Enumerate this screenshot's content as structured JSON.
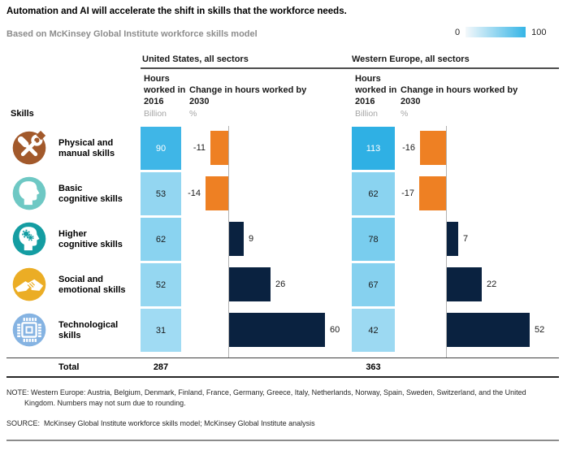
{
  "title": "Automation and AI will accelerate the shift in skills that the workforce needs.",
  "subtitle": "Based on McKinsey Global Institute workforce skills model",
  "legend": {
    "min": "0",
    "max": "100"
  },
  "sections": {
    "us": "United States, all sectors",
    "we": "Western Europe, all sectors"
  },
  "columns": {
    "skills": "Skills",
    "hours_title": "Hours worked in 2016",
    "hours_unit": "Billion",
    "change_title": "Change in hours worked by 2030",
    "change_unit": "%"
  },
  "rows": [
    {
      "icon": "tools-icon",
      "icon_color": "#A2592B",
      "label": "Physical and\nmanual skills",
      "us_hours": "90",
      "us_change": "-11",
      "we_hours": "113",
      "we_change": "-16",
      "us_hours_color": "#3FB6E7",
      "we_hours_color": "#2FB0E4",
      "us_text": "#ffffff",
      "we_text": "#ffffff"
    },
    {
      "icon": "head-silhouette-icon",
      "icon_color": "#6EC8C4",
      "label": "Basic\ncognitive skills",
      "us_hours": "53",
      "us_change": "-14",
      "we_hours": "62",
      "we_change": "-17",
      "us_hours_color": "#93D6F1",
      "we_hours_color": "#8AD3F0",
      "us_text": "#1a1a1a",
      "we_text": "#1a1a1a"
    },
    {
      "icon": "head-gears-icon",
      "icon_color": "#149DA2",
      "label": "Higher\ncognitive skills",
      "us_hours": "62",
      "us_change": "9",
      "we_hours": "78",
      "we_change": "7",
      "us_hours_color": "#8AD3F0",
      "we_hours_color": "#79CDEE",
      "us_text": "#1a1a1a",
      "we_text": "#1a1a1a"
    },
    {
      "icon": "handshake-icon",
      "icon_color": "#EBAD25",
      "label": "Social and\nemotional skills",
      "us_hours": "52",
      "us_change": "26",
      "we_hours": "67",
      "we_change": "22",
      "us_hours_color": "#95D7F1",
      "we_hours_color": "#86D1EF",
      "us_text": "#1a1a1a",
      "we_text": "#1a1a1a"
    },
    {
      "icon": "microchip-icon",
      "icon_color": "#85B3E2",
      "label": "Technological\nskills",
      "us_hours": "31",
      "us_change": "60",
      "we_hours": "42",
      "we_change": "52",
      "us_hours_color": "#A0DBF3",
      "we_hours_color": "#9CD9F2",
      "us_text": "#1a1a1a",
      "we_text": "#1a1a1a"
    }
  ],
  "total": {
    "label": "Total",
    "us": "287",
    "we": "363"
  },
  "note": "NOTE: Western Europe: Austria, Belgium, Denmark, Finland, France, Germany, Greece, Italy, Netherlands, Norway, Spain, Sweden, Switzerland, and the United Kingdom. Numbers may not sum due to rounding.",
  "source": "SOURCE:  McKinsey Global Institute workforce skills model; McKinsey Global Institute analysis",
  "colors": {
    "positive_bar": "#0A2240",
    "negative_bar": "#EE8023",
    "axis": "#B3B3B3",
    "scale_low": "#F4F8FB",
    "scale_high": "#35B5E6"
  },
  "chart_data": {
    "type": "bar",
    "title": "Automation and AI will accelerate the shift in skills that the workforce needs.",
    "subtitle": "Based on McKinsey Global Institute workforce skills model",
    "categories": [
      "Physical and manual skills",
      "Basic cognitive skills",
      "Higher cognitive skills",
      "Social and emotional skills",
      "Technological skills"
    ],
    "series": [
      {
        "name": "United States hours worked in 2016 (billion)",
        "values": [
          90,
          53,
          62,
          52,
          31
        ],
        "total": 287
      },
      {
        "name": "United States change in hours worked by 2030 (%)",
        "values": [
          -11,
          -14,
          9,
          26,
          60
        ]
      },
      {
        "name": "Western Europe hours worked in 2016 (billion)",
        "values": [
          113,
          62,
          78,
          67,
          42
        ],
        "total": 363
      },
      {
        "name": "Western Europe change in hours worked by 2030 (%)",
        "values": [
          -16,
          -17,
          7,
          22,
          52
        ]
      }
    ],
    "color_scale": {
      "min": 0,
      "max": 100,
      "legend_position": "top-right"
    },
    "grid": false
  }
}
